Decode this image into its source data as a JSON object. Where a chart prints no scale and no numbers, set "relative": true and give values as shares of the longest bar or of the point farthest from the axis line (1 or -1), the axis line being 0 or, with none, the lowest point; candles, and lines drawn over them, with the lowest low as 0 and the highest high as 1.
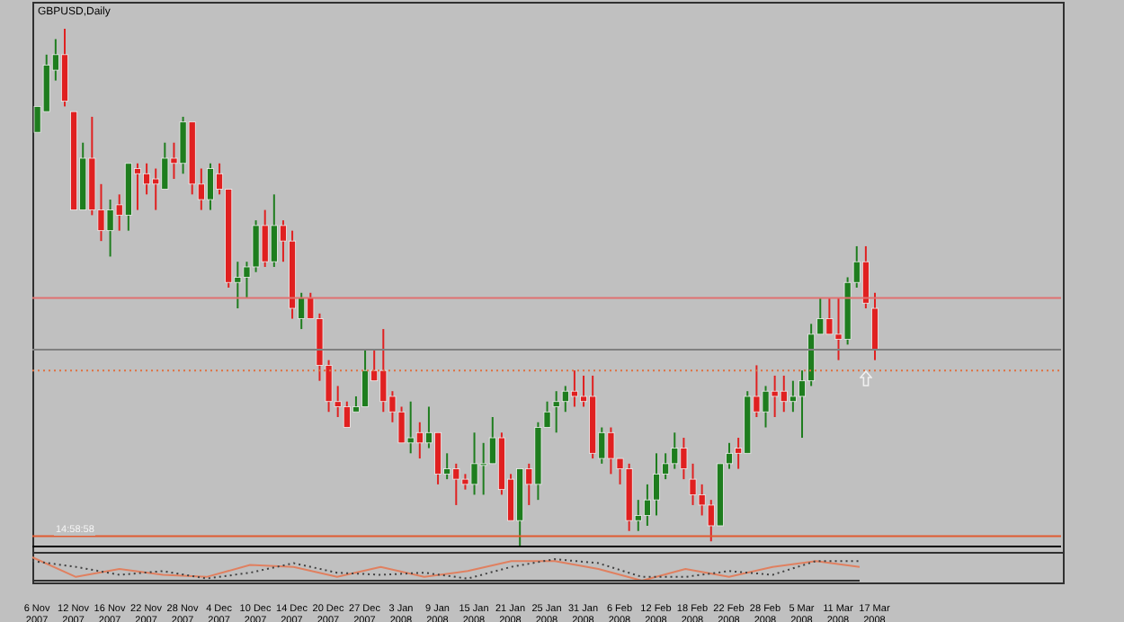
{
  "chart_data": [
    {
      "type": "candlestick",
      "title": "GBPUSD,Daily",
      "relative": true,
      "legend": false,
      "categories": [
        "6 Nov 2007",
        null,
        null,
        null,
        "12 Nov 2007",
        null,
        null,
        null,
        "16 Nov 2007",
        null,
        null,
        null,
        "22 Nov 2007",
        null,
        null,
        null,
        "28 Nov 2007",
        null,
        null,
        null,
        "4 Dec 2007",
        null,
        null,
        null,
        "10 Dec 2007",
        null,
        null,
        null,
        "14 Dec 2007",
        null,
        null,
        null,
        "20 Dec 2007",
        null,
        null,
        null,
        "27 Dec 2007",
        null,
        null,
        null,
        "3 Jan 2008",
        null,
        null,
        null,
        "9 Jan 2008",
        null,
        null,
        null,
        "15 Jan 2008",
        null,
        null,
        null,
        "21 Jan 2008",
        null,
        null,
        null,
        "25 Jan 2008",
        null,
        null,
        null,
        "31 Jan 2008",
        null,
        null,
        null,
        "6 Feb 2008",
        null,
        null,
        null,
        "12 Feb 2008",
        null,
        null,
        null,
        "18 Feb 2008",
        null,
        null,
        null,
        "22 Feb 2008",
        null,
        null,
        null,
        "28 Feb 2008",
        null,
        null,
        null,
        "5 Mar 2008",
        null,
        null,
        null,
        "11 Mar 2008",
        null,
        null,
        null,
        "17 Mar 2008"
      ],
      "ohlc": [
        [
          0.8,
          0.85,
          0.8,
          0.85
        ],
        [
          0.84,
          0.95,
          0.84,
          0.93
        ],
        [
          0.92,
          0.98,
          0.9,
          0.95
        ],
        [
          0.95,
          1,
          0.85,
          0.86
        ],
        [
          0.84,
          0.84,
          0.65,
          0.65
        ],
        [
          0.65,
          0.78,
          0.65,
          0.75
        ],
        [
          0.75,
          0.83,
          0.64,
          0.65
        ],
        [
          0.65,
          0.7,
          0.59,
          0.61
        ],
        [
          0.61,
          0.67,
          0.56,
          0.65
        ],
        [
          0.66,
          0.68,
          0.61,
          0.64
        ],
        [
          0.64,
          0.74,
          0.61,
          0.74
        ],
        [
          0.73,
          0.74,
          0.65,
          0.72
        ],
        [
          0.72,
          0.74,
          0.68,
          0.7
        ],
        [
          0.71,
          0.73,
          0.65,
          0.7
        ],
        [
          0.69,
          0.78,
          0.69,
          0.75
        ],
        [
          0.75,
          0.78,
          0.71,
          0.74
        ],
        [
          0.74,
          0.83,
          0.72,
          0.82
        ],
        [
          0.82,
          0.82,
          0.68,
          0.7
        ],
        [
          0.7,
          0.73,
          0.65,
          0.67
        ],
        [
          0.67,
          0.74,
          0.65,
          0.73
        ],
        [
          0.72,
          0.74,
          0.68,
          0.69
        ],
        [
          0.69,
          0.69,
          0.5,
          0.51
        ],
        [
          0.51,
          0.55,
          0.46,
          0.52
        ],
        [
          0.52,
          0.55,
          0.48,
          0.54
        ],
        [
          0.54,
          0.63,
          0.53,
          0.62
        ],
        [
          0.62,
          0.65,
          0.54,
          0.55
        ],
        [
          0.55,
          0.68,
          0.54,
          0.62
        ],
        [
          0.62,
          0.63,
          0.55,
          0.59
        ],
        [
          0.59,
          0.61,
          0.44,
          0.46
        ],
        [
          0.44,
          0.49,
          0.42,
          0.48
        ],
        [
          0.48,
          0.49,
          0.44,
          0.44
        ],
        [
          0.44,
          0.45,
          0.32,
          0.35
        ],
        [
          0.35,
          0.36,
          0.26,
          0.28
        ],
        [
          0.28,
          0.31,
          0.25,
          0.27
        ],
        [
          0.27,
          0.28,
          0.23,
          0.23
        ],
        [
          0.26,
          0.29,
          0.26,
          0.27
        ],
        [
          0.27,
          0.38,
          0.27,
          0.34
        ],
        [
          0.34,
          0.38,
          0.32,
          0.32
        ],
        [
          0.34,
          0.42,
          0.26,
          0.28
        ],
        [
          0.29,
          0.3,
          0.24,
          0.26
        ],
        [
          0.26,
          0.27,
          0.2,
          0.2
        ],
        [
          0.2,
          0.28,
          0.18,
          0.21
        ],
        [
          0.22,
          0.24,
          0.17,
          0.2
        ],
        [
          0.2,
          0.27,
          0.19,
          0.22
        ],
        [
          0.22,
          0.22,
          0.12,
          0.14
        ],
        [
          0.14,
          0.18,
          0.13,
          0.15
        ],
        [
          0.15,
          0.16,
          0.08,
          0.13
        ],
        [
          0.13,
          0.14,
          0.11,
          0.12
        ],
        [
          0.12,
          0.22,
          0.1,
          0.16
        ],
        [
          0.16,
          0.2,
          0.1,
          0.16
        ],
        [
          0.16,
          0.25,
          0.16,
          0.21
        ],
        [
          0.21,
          0.22,
          0.1,
          0.11
        ],
        [
          0.13,
          0.14,
          0.05,
          0.05
        ],
        [
          0.05,
          0.15,
          0,
          0.15
        ],
        [
          0.15,
          0.16,
          0.08,
          0.12
        ],
        [
          0.12,
          0.24,
          0.09,
          0.23
        ],
        [
          0.23,
          0.28,
          0.23,
          0.26
        ],
        [
          0.27,
          0.3,
          0.22,
          0.28
        ],
        [
          0.28,
          0.31,
          0.26,
          0.3
        ],
        [
          0.3,
          0.34,
          0.27,
          0.29
        ],
        [
          0.29,
          0.33,
          0.27,
          0.28
        ],
        [
          0.29,
          0.33,
          0.17,
          0.18
        ],
        [
          0.17,
          0.23,
          0.16,
          0.22
        ],
        [
          0.22,
          0.23,
          0.14,
          0.17
        ],
        [
          0.17,
          0.17,
          0.12,
          0.15
        ],
        [
          0.15,
          0.16,
          0.03,
          0.05
        ],
        [
          0.05,
          0.09,
          0.03,
          0.06
        ],
        [
          0.06,
          0.12,
          0.04,
          0.09
        ],
        [
          0.09,
          0.18,
          0.06,
          0.14
        ],
        [
          0.14,
          0.18,
          0.13,
          0.16
        ],
        [
          0.16,
          0.22,
          0.15,
          0.19
        ],
        [
          0.19,
          0.21,
          0.13,
          0.15
        ],
        [
          0.13,
          0.16,
          0.08,
          0.1
        ],
        [
          0.1,
          0.12,
          0.06,
          0.08
        ],
        [
          0.08,
          0.09,
          0.01,
          0.04
        ],
        [
          0.04,
          0.16,
          0.04,
          0.16
        ],
        [
          0.16,
          0.2,
          0.15,
          0.18
        ],
        [
          0.19,
          0.21,
          0.15,
          0.18
        ],
        [
          0.18,
          0.3,
          0.18,
          0.29
        ],
        [
          0.29,
          0.35,
          0.25,
          0.26
        ],
        [
          0.26,
          0.31,
          0.23,
          0.3
        ],
        [
          0.3,
          0.33,
          0.25,
          0.29
        ],
        [
          0.3,
          0.33,
          0.26,
          0.28
        ],
        [
          0.28,
          0.32,
          0.26,
          0.29
        ],
        [
          0.29,
          0.34,
          0.21,
          0.32
        ],
        [
          0.32,
          0.43,
          0.31,
          0.41
        ],
        [
          0.41,
          0.48,
          0.41,
          0.44
        ],
        [
          0.44,
          0.48,
          0.41,
          0.41
        ],
        [
          0.41,
          0.48,
          0.36,
          0.4
        ],
        [
          0.4,
          0.52,
          0.39,
          0.51
        ],
        [
          0.51,
          0.58,
          0.5,
          0.55
        ],
        [
          0.55,
          0.58,
          0.46,
          0.47
        ],
        [
          0.46,
          0.49,
          0.36,
          0.38
        ]
      ],
      "colors": [
        "#1e7d1e",
        "#1e7d1e",
        "#1e7d1e",
        "#e02020",
        "#e02020",
        "#1e7d1e",
        "#e02020",
        "#e02020",
        "#1e7d1e",
        "#e02020",
        "#1e7d1e",
        "#e02020",
        "#e02020",
        "#e02020",
        "#1e7d1e",
        "#e02020",
        "#1e7d1e",
        "#e02020",
        "#e02020",
        "#1e7d1e",
        "#e02020",
        "#e02020",
        "#1e7d1e",
        "#1e7d1e",
        "#1e7d1e",
        "#e02020",
        "#1e7d1e",
        "#e02020",
        "#e02020",
        "#1e7d1e",
        "#e02020",
        "#e02020",
        "#e02020",
        "#e02020",
        "#e02020",
        "#1e7d1e",
        "#1e7d1e",
        "#e02020",
        "#e02020",
        "#e02020",
        "#e02020",
        "#1e7d1e",
        "#e02020",
        "#1e7d1e",
        "#e02020",
        "#1e7d1e",
        "#e02020",
        "#e02020",
        "#1e7d1e",
        "#1e7d1e",
        "#1e7d1e",
        "#e02020",
        "#e02020",
        "#1e7d1e",
        "#e02020",
        "#1e7d1e",
        "#1e7d1e",
        "#1e7d1e",
        "#1e7d1e",
        "#e02020",
        "#e02020",
        "#e02020",
        "#1e7d1e",
        "#e02020",
        "#e02020",
        "#e02020",
        "#1e7d1e",
        "#1e7d1e",
        "#1e7d1e",
        "#1e7d1e",
        "#1e7d1e",
        "#e02020",
        "#e02020",
        "#e02020",
        "#e02020",
        "#1e7d1e",
        "#1e7d1e",
        "#e02020",
        "#1e7d1e",
        "#e02020",
        "#1e7d1e",
        "#e02020",
        "#e02020",
        "#1e7d1e",
        "#1e7d1e",
        "#1e7d1e",
        "#1e7d1e",
        "#e02020",
        "#e02020",
        "#1e7d1e",
        "#1e7d1e",
        "#e02020",
        "#e02020"
      ],
      "ref_lines": [
        {
          "axis": "y",
          "value": 0.48,
          "color": "#e07070",
          "line_style": "solid"
        },
        {
          "axis": "y",
          "value": 0.38,
          "color": "#808080",
          "line_style": "solid"
        },
        {
          "axis": "y",
          "value": 0.34,
          "color": "#e07040",
          "line_style": "dotted"
        },
        {
          "axis": "y",
          "value": 0.02,
          "color": "#e05a30",
          "line_style": "solid"
        }
      ],
      "annotations": [
        "14:58:58"
      ]
    },
    {
      "type": "line",
      "relative": true,
      "legend": false,
      "marker": "none",
      "categories": [
        null,
        null,
        null,
        null,
        null,
        null,
        null,
        null,
        null,
        null,
        null,
        null,
        null,
        null,
        null,
        null,
        null,
        null,
        null,
        null
      ],
      "series": [
        {
          "color": "#e08060",
          "line_style": "solid",
          "values": [
            1,
            0.16,
            0.5,
            0.25,
            0.16,
            0.67,
            0.59,
            0.16,
            0.59,
            0.16,
            0.41,
            0.84,
            0.84,
            0.5,
            0,
            0.5,
            0.16,
            0.59,
            0.84,
            0.59
          ]
        },
        {
          "color": "#404040",
          "line_style": "dotted",
          "values": [
            0.84,
            0.59,
            0.25,
            0.41,
            0.09,
            0.34,
            0.75,
            0.34,
            0.25,
            0.34,
            0.09,
            0.59,
            0.92,
            0.75,
            0.16,
            0.16,
            0.41,
            0.25,
            0.84,
            0.84
          ]
        }
      ]
    }
  ]
}
